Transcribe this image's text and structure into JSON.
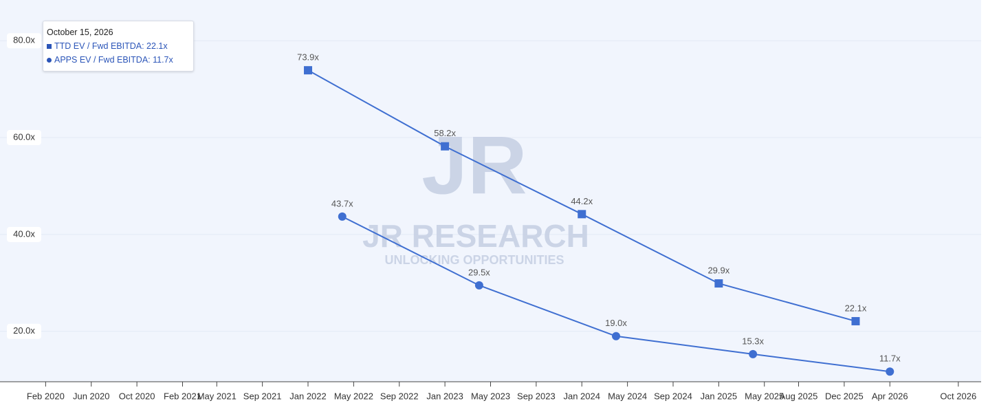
{
  "chart_data": {
    "type": "line",
    "watermark": {
      "logo": "JR",
      "name": "JR RESEARCH",
      "tagline": "UNLOCKING OPPORTUNITIES"
    },
    "tooltip": {
      "title": "October 15, 2026",
      "items": [
        "TTD EV / Fwd EBITDA: 22.1x",
        "APPS EV / Fwd EBITDA: 11.7x"
      ]
    },
    "series": [
      {
        "name": "TTD EV / Fwd EBITDA",
        "color": "#3f6fd1",
        "marker": "square",
        "x": [
          "2022-01",
          "2023-01",
          "2024-01",
          "2025-01",
          "2026-01"
        ],
        "values": [
          73.9,
          58.2,
          44.2,
          29.9,
          22.1
        ],
        "value_labels": [
          "73.9x",
          "58.2x",
          "44.2x",
          "29.9x",
          "22.1x"
        ]
      },
      {
        "name": "APPS EV / Fwd EBITDA",
        "color": "#3f6fd1",
        "marker": "circle",
        "x": [
          "2022-04",
          "2023-04",
          "2024-04",
          "2025-04",
          "2026-04"
        ],
        "values": [
          43.7,
          29.5,
          19.0,
          15.3,
          11.7
        ],
        "value_labels": [
          "43.7x",
          "29.5x",
          "19.0x",
          "15.3x",
          "11.7x"
        ]
      }
    ],
    "xlim": [
      "2019-10",
      "2026-12"
    ],
    "xticks": [
      {
        "value": "2020-02",
        "label": "Feb 2020"
      },
      {
        "value": "2020-06",
        "label": "Jun 2020"
      },
      {
        "value": "2020-10",
        "label": "Oct 2020"
      },
      {
        "value": "2021-02",
        "label": "Feb 2021"
      },
      {
        "value": "2021-05",
        "label": "May 2021"
      },
      {
        "value": "2021-09",
        "label": "Sep 2021"
      },
      {
        "value": "2022-01",
        "label": "Jan 2022"
      },
      {
        "value": "2022-05",
        "label": "May 2022"
      },
      {
        "value": "2022-09",
        "label": "Sep 2022"
      },
      {
        "value": "2023-01",
        "label": "Jan 2023"
      },
      {
        "value": "2023-05",
        "label": "May 2023"
      },
      {
        "value": "2023-09",
        "label": "Sep 2023"
      },
      {
        "value": "2024-01",
        "label": "Jan 2024"
      },
      {
        "value": "2024-05",
        "label": "May 2024"
      },
      {
        "value": "2024-09",
        "label": "Sep 2024"
      },
      {
        "value": "2025-01",
        "label": "Jan 2025"
      },
      {
        "value": "2025-05",
        "label": "May 2025"
      },
      {
        "value": "2025-08",
        "label": "Aug 2025"
      },
      {
        "value": "2025-12",
        "label": "Dec 2025"
      },
      {
        "value": "2026-04",
        "label": "Apr 2026"
      },
      {
        "value": "2026-10",
        "label": "Oct 2026"
      }
    ],
    "ylim": [
      9.6,
      85
    ],
    "yticks": [
      {
        "value": 20,
        "label": "20.0x"
      },
      {
        "value": 40,
        "label": "40.0x"
      },
      {
        "value": 60,
        "label": "60.0x"
      },
      {
        "value": 80,
        "label": "80.0x"
      }
    ],
    "grid": true
  }
}
